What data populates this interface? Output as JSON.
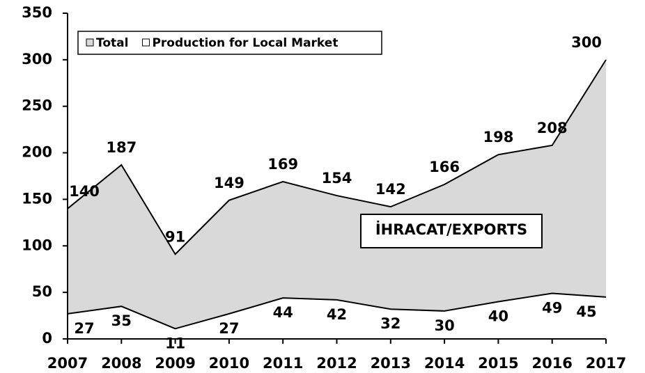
{
  "chart_data": {
    "type": "area",
    "categories": [
      "2007",
      "2008",
      "2009",
      "2010",
      "2011",
      "2012",
      "2013",
      "2014",
      "2015",
      "2016",
      "2017"
    ],
    "series": [
      {
        "name": "Total",
        "color": "#d9d9d9",
        "values": [
          140,
          187,
          91,
          149,
          169,
          154,
          142,
          166,
          198,
          208,
          300
        ]
      },
      {
        "name": "Production for Local Market",
        "color": "#ffffff",
        "values": [
          27,
          35,
          11,
          27,
          44,
          42,
          32,
          30,
          40,
          49,
          45
        ]
      }
    ],
    "annotation": "İHRACAT/EXPORTS",
    "ylim": [
      0,
      350
    ],
    "yticks": [
      0,
      50,
      100,
      150,
      200,
      250,
      300,
      350
    ],
    "legend": "upper left"
  }
}
